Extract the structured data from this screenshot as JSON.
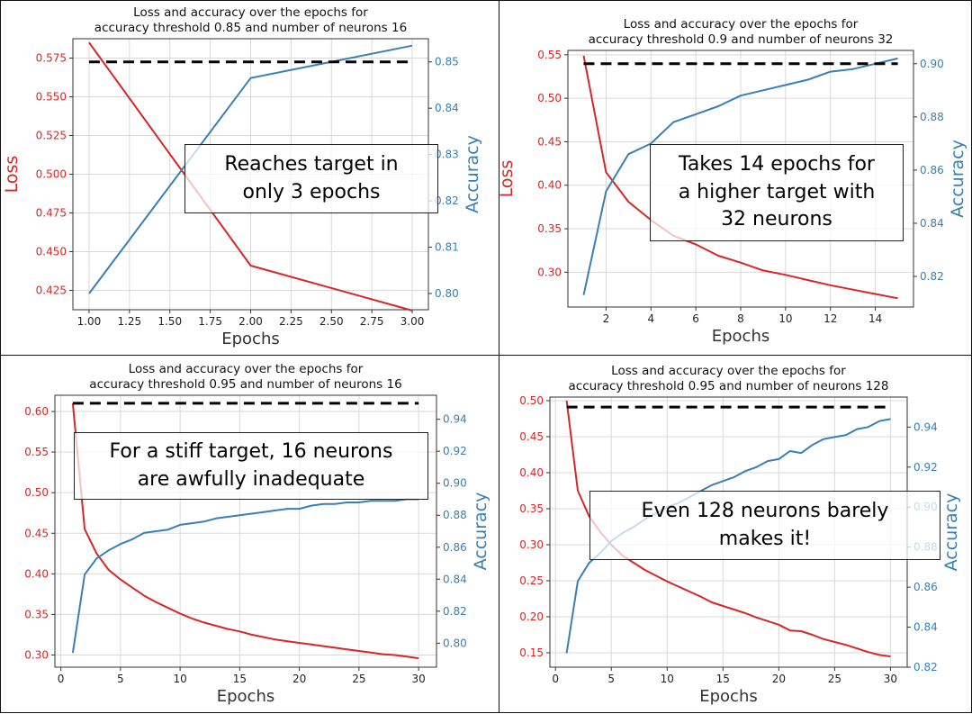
{
  "colors": {
    "loss": "#d62728",
    "accuracy": "#3a7fb4",
    "target": "#000000",
    "grid": "#d9d9d9"
  },
  "chart_data": [
    {
      "type": "line",
      "title": "Loss and accuracy over the epochs for\naccuracy threshold 0.85 and number of neurons 16",
      "xlabel": "Epochs",
      "ylabel_left": "Loss",
      "ylabel_right": "Accuracy",
      "annotation": "Reaches target in\nonly 3 epochs",
      "xlim": [
        0.9,
        3.1
      ],
      "xticks": [
        1.0,
        1.25,
        1.5,
        1.75,
        2.0,
        2.25,
        2.5,
        2.75,
        3.0
      ],
      "xtick_labels": [
        "1.00",
        "1.25",
        "1.50",
        "1.75",
        "2.00",
        "2.25",
        "2.50",
        "2.75",
        "3.00"
      ],
      "ylim_left": [
        0.4125,
        0.5875
      ],
      "yticks_left": [
        0.425,
        0.45,
        0.475,
        0.5,
        0.525,
        0.55,
        0.575
      ],
      "ytick_labels_left": [
        "0.425",
        "0.450",
        "0.475",
        "0.500",
        "0.525",
        "0.550",
        "0.575"
      ],
      "ylim_right": [
        0.7965,
        0.855
      ],
      "yticks_right": [
        0.8,
        0.81,
        0.82,
        0.83,
        0.84,
        0.85
      ],
      "ytick_labels_right": [
        "0.80",
        "0.81",
        "0.82",
        "0.83",
        "0.84",
        "0.85"
      ],
      "target_accuracy": 0.85,
      "series": [
        {
          "name": "Loss",
          "axis": "left",
          "x": [
            1,
            2,
            3
          ],
          "values": [
            0.585,
            0.441,
            0.412
          ]
        },
        {
          "name": "Accuracy",
          "axis": "right",
          "x": [
            1,
            2,
            3
          ],
          "values": [
            0.8,
            0.8465,
            0.8535
          ]
        }
      ]
    },
    {
      "type": "line",
      "title": "Loss and accuracy over the epochs for\naccuracy threshold 0.9 and number of neurons 32",
      "xlabel": "Epochs",
      "ylabel_left": "Loss",
      "ylabel_right": "Accuracy",
      "annotation": "Takes 14 epochs for\na higher target with\n32 neurons",
      "xlim": [
        0.3,
        15.7
      ],
      "xticks": [
        2,
        4,
        6,
        8,
        10,
        12,
        14
      ],
      "xtick_labels": [
        "2",
        "4",
        "6",
        "8",
        "10",
        "12",
        "14"
      ],
      "ylim_left": [
        0.26,
        0.555
      ],
      "yticks_left": [
        0.3,
        0.35,
        0.4,
        0.45,
        0.5,
        0.55
      ],
      "ytick_labels_left": [
        "0.30",
        "0.35",
        "0.40",
        "0.45",
        "0.50",
        "0.55"
      ],
      "ylim_right": [
        0.8085,
        0.905
      ],
      "yticks_right": [
        0.82,
        0.84,
        0.86,
        0.88,
        0.9
      ],
      "ytick_labels_right": [
        "0.82",
        "0.84",
        "0.86",
        "0.88",
        "0.90"
      ],
      "target_accuracy": 0.9,
      "series": [
        {
          "name": "Loss",
          "axis": "left",
          "x": [
            1,
            2,
            3,
            4,
            5,
            6,
            7,
            8,
            9,
            10,
            11,
            12,
            13,
            14,
            15
          ],
          "values": [
            0.549,
            0.415,
            0.381,
            0.36,
            0.342,
            0.332,
            0.319,
            0.311,
            0.302,
            0.297,
            0.291,
            0.285,
            0.28,
            0.275,
            0.27
          ]
        },
        {
          "name": "Accuracy",
          "axis": "right",
          "x": [
            1,
            2,
            3,
            4,
            5,
            6,
            7,
            8,
            9,
            10,
            11,
            12,
            13,
            14,
            15
          ],
          "values": [
            0.813,
            0.852,
            0.866,
            0.87,
            0.878,
            0.881,
            0.884,
            0.888,
            0.89,
            0.892,
            0.894,
            0.897,
            0.898,
            0.9,
            0.902
          ]
        }
      ]
    },
    {
      "type": "line",
      "title": "Loss and accuracy over the epochs for\naccuracy threshold 0.95 and number of neurons 16",
      "xlabel": "Epochs",
      "ylabel_left": "Loss",
      "ylabel_right": "Accuracy",
      "annotation": "For a stiff target, 16 neurons\nare awfully inadequate",
      "xlim": [
        -0.5,
        31.5
      ],
      "xticks": [
        0,
        5,
        10,
        15,
        20,
        25,
        30
      ],
      "xtick_labels": [
        "0",
        "5",
        "10",
        "15",
        "20",
        "25",
        "30"
      ],
      "ylim_left": [
        0.285,
        0.62
      ],
      "yticks_left": [
        0.3,
        0.35,
        0.4,
        0.45,
        0.5,
        0.55,
        0.6
      ],
      "ytick_labels_left": [
        "0.30",
        "0.35",
        "0.40",
        "0.45",
        "0.50",
        "0.55",
        "0.60"
      ],
      "ylim_right": [
        0.785,
        0.955
      ],
      "yticks_right": [
        0.8,
        0.82,
        0.84,
        0.86,
        0.88,
        0.9,
        0.92,
        0.94
      ],
      "ytick_labels_right": [
        "0.80",
        "0.82",
        "0.84",
        "0.86",
        "0.88",
        "0.90",
        "0.92",
        "0.94"
      ],
      "target_accuracy": 0.95,
      "series": [
        {
          "name": "Loss",
          "axis": "left",
          "x": [
            1,
            2,
            3,
            4,
            5,
            6,
            7,
            8,
            9,
            10,
            11,
            12,
            13,
            14,
            15,
            16,
            17,
            18,
            19,
            20,
            21,
            22,
            23,
            24,
            25,
            26,
            27,
            28,
            29,
            30
          ],
          "values": [
            0.61,
            0.455,
            0.425,
            0.405,
            0.393,
            0.383,
            0.373,
            0.365,
            0.358,
            0.351,
            0.345,
            0.34,
            0.336,
            0.332,
            0.329,
            0.325,
            0.322,
            0.319,
            0.317,
            0.315,
            0.313,
            0.311,
            0.309,
            0.307,
            0.305,
            0.303,
            0.301,
            0.3,
            0.298,
            0.296
          ]
        },
        {
          "name": "Accuracy",
          "axis": "right",
          "x": [
            1,
            2,
            3,
            4,
            5,
            6,
            7,
            8,
            9,
            10,
            11,
            12,
            13,
            14,
            15,
            16,
            17,
            18,
            19,
            20,
            21,
            22,
            23,
            24,
            25,
            26,
            27,
            28,
            29,
            30
          ],
          "values": [
            0.794,
            0.843,
            0.853,
            0.858,
            0.862,
            0.865,
            0.869,
            0.87,
            0.871,
            0.874,
            0.875,
            0.876,
            0.878,
            0.879,
            0.88,
            0.881,
            0.882,
            0.883,
            0.884,
            0.884,
            0.886,
            0.887,
            0.887,
            0.888,
            0.888,
            0.889,
            0.889,
            0.889,
            0.89,
            0.89
          ]
        }
      ]
    },
    {
      "type": "line",
      "title": "Loss and accuracy over the epochs for\naccuracy threshold 0.95 and number of neurons 128",
      "xlabel": "Epochs",
      "ylabel_left": "Loss",
      "ylabel_right": "Accuracy",
      "annotation": "Even 128 neurons barely\nmakes it!",
      "xlim": [
        -0.5,
        31.5
      ],
      "xticks": [
        0,
        5,
        10,
        15,
        20,
        25,
        30
      ],
      "xtick_labels": [
        "0",
        "5",
        "10",
        "15",
        "20",
        "25",
        "30"
      ],
      "ylim_left": [
        0.13,
        0.505
      ],
      "yticks_left": [
        0.15,
        0.2,
        0.25,
        0.3,
        0.35,
        0.4,
        0.45,
        0.5
      ],
      "ytick_labels_left": [
        "0.15",
        "0.20",
        "0.25",
        "0.30",
        "0.35",
        "0.40",
        "0.45",
        "0.50"
      ],
      "ylim_right": [
        0.82,
        0.955
      ],
      "yticks_right": [
        0.82,
        0.84,
        0.86,
        0.88,
        0.9,
        0.92,
        0.94
      ],
      "ytick_labels_right": [
        "0.82",
        "0.84",
        "0.86",
        "0.88",
        "0.90",
        "0.92",
        "0.94"
      ],
      "target_accuracy": 0.95,
      "series": [
        {
          "name": "Loss",
          "axis": "left",
          "x": [
            1,
            2,
            3,
            4,
            5,
            6,
            7,
            8,
            9,
            10,
            11,
            12,
            13,
            14,
            15,
            16,
            17,
            18,
            19,
            20,
            21,
            22,
            23,
            24,
            25,
            26,
            27,
            28,
            29,
            30
          ],
          "values": [
            0.5,
            0.375,
            0.34,
            0.318,
            0.3,
            0.285,
            0.275,
            0.265,
            0.257,
            0.249,
            0.242,
            0.235,
            0.228,
            0.22,
            0.215,
            0.21,
            0.205,
            0.199,
            0.194,
            0.189,
            0.181,
            0.18,
            0.175,
            0.169,
            0.165,
            0.161,
            0.156,
            0.151,
            0.147,
            0.145
          ]
        },
        {
          "name": "Accuracy",
          "axis": "right",
          "x": [
            1,
            2,
            3,
            4,
            5,
            6,
            7,
            8,
            9,
            10,
            11,
            12,
            13,
            14,
            15,
            16,
            17,
            18,
            19,
            20,
            21,
            22,
            23,
            24,
            25,
            26,
            27,
            28,
            29,
            30
          ],
          "values": [
            0.827,
            0.863,
            0.872,
            0.877,
            0.883,
            0.887,
            0.89,
            0.894,
            0.897,
            0.9,
            0.902,
            0.905,
            0.908,
            0.911,
            0.913,
            0.915,
            0.918,
            0.92,
            0.923,
            0.924,
            0.928,
            0.927,
            0.931,
            0.934,
            0.935,
            0.936,
            0.939,
            0.94,
            0.943,
            0.944
          ]
        }
      ]
    }
  ]
}
